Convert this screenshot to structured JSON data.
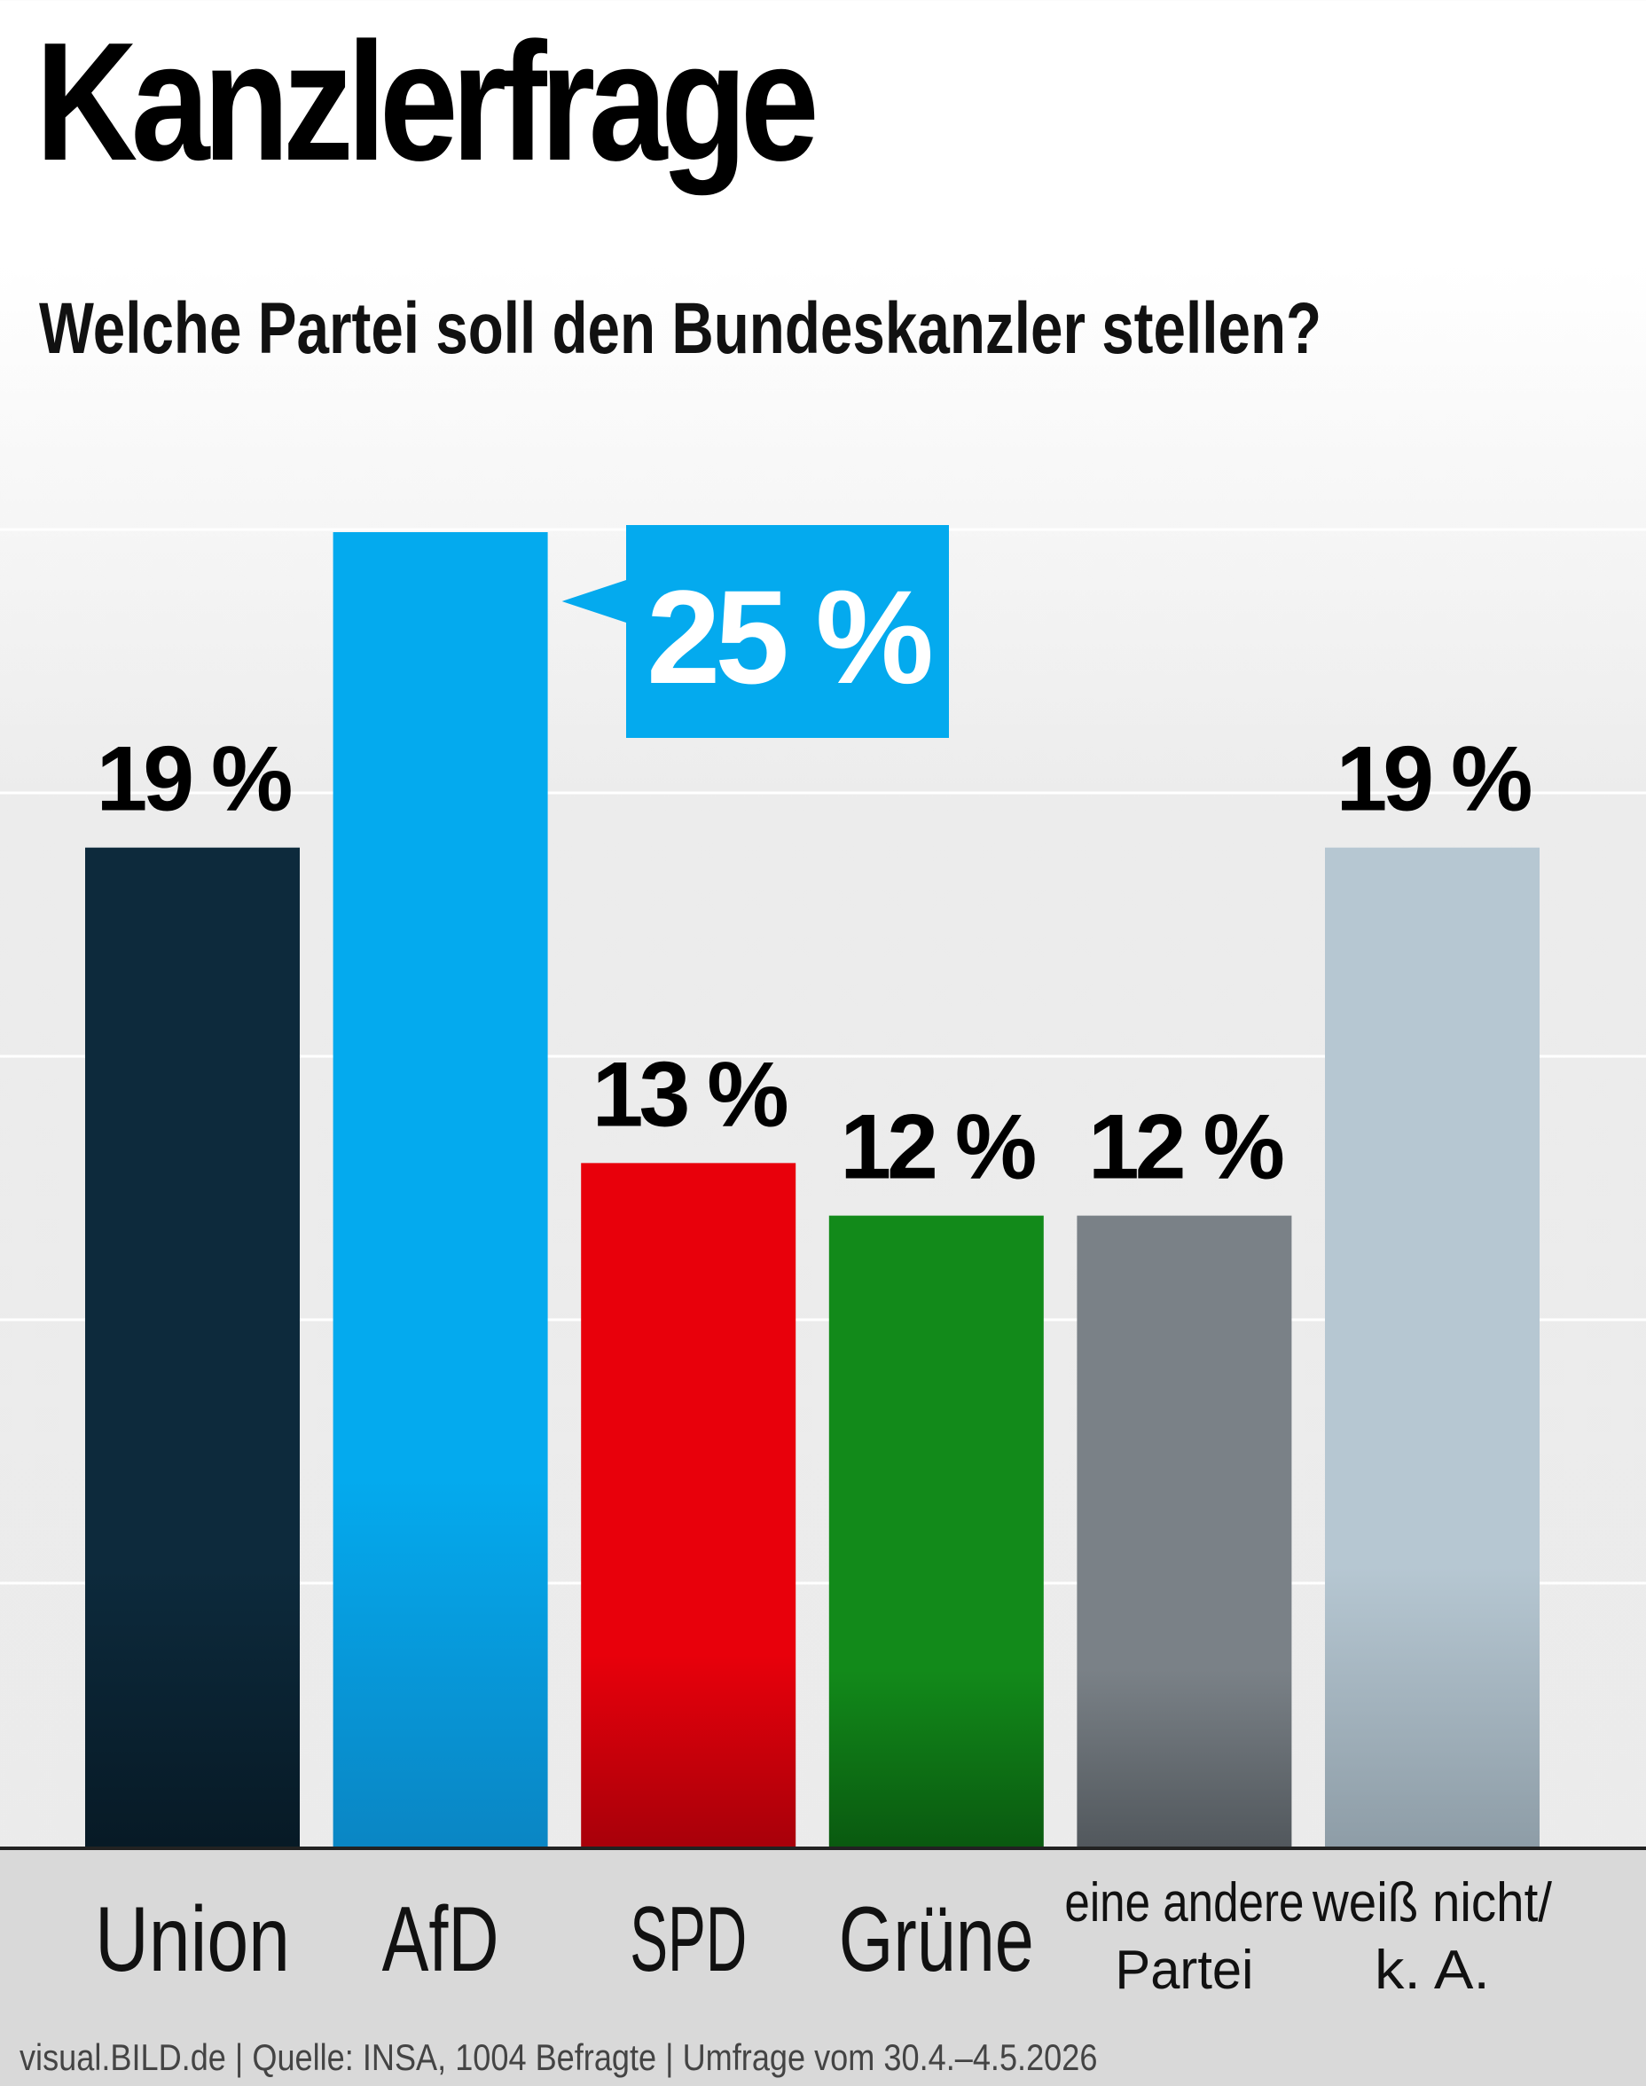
{
  "header": {
    "title": "Kanzlerfrage",
    "subtitle": "Welche Partei soll den Bundeskanzler stellen?"
  },
  "footer": {
    "source": "visual.BILD.de | Quelle: INSA, 1004 Befragte | Umfrage vom 30.4.–4.5.2026"
  },
  "chart_data": {
    "type": "bar",
    "title": "Kanzlerfrage",
    "subtitle": "Welche Partei soll den Bundeskanzler stellen?",
    "categories": [
      "Union",
      "AfD",
      "SPD",
      "Grüne",
      "eine andere Partei",
      "weiß nicht/ k. A."
    ],
    "category_label_lines": [
      [
        "Union"
      ],
      [
        "AfD"
      ],
      [
        "SPD"
      ],
      [
        "Grüne"
      ],
      [
        "eine andere",
        "Partei"
      ],
      [
        "weiß nicht/",
        "k. A."
      ]
    ],
    "values": [
      19,
      25,
      13,
      12,
      12,
      19
    ],
    "value_labels": [
      "19 %",
      "25 %",
      "13 %",
      "12 %",
      "12 %",
      "19 %"
    ],
    "highlight_index": 1,
    "unit": "%",
    "ylim": [
      0,
      25
    ],
    "grid": true,
    "legend": "none",
    "colors": [
      "#0d2a3c",
      "#04aaee",
      "#e8000b",
      "#128a1a",
      "#7a8187",
      "#b6c7d2"
    ],
    "colors_bottom": [
      "#071a26",
      "#0a86c4",
      "#a8000a",
      "#0a5a10",
      "#52585d",
      "#8e9da7"
    ],
    "label_colors": [
      "#000000",
      "#ffffff",
      "#000000",
      "#000000",
      "#000000",
      "#000000"
    ]
  }
}
